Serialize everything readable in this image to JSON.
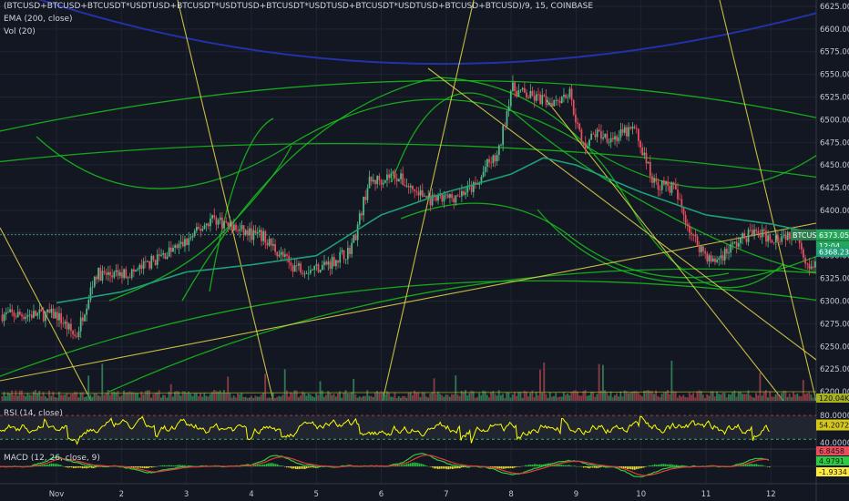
{
  "header": {
    "symbol_line": "(BTCUSD+BTCUSD+BTCUSDT*USDTUSD+BTCUSDT*USDTUSD+BTCUSDT*USDTUSD+BTCUSDT*USDTUSD+BTCUSD+BTCUSD)/9, 15, COINBASE",
    "ema_label": "EMA (200, close)",
    "vol_label": "Vol (20)"
  },
  "rsi": {
    "label": "RSI (14, close)",
    "value": "54.2072",
    "levels": [
      "80.0000",
      "40.0000"
    ],
    "upper": 70,
    "lower": 30
  },
  "macd": {
    "label": "MACD (12, 26, close, 9)",
    "values": [
      "6.8458",
      "4.9791",
      "-1.9334"
    ]
  },
  "price_badges": {
    "last": "6373.05",
    "last_label": "BTCUSD",
    "countdown": "12:04",
    "ema": "6368.23",
    "volume": "120.04K"
  },
  "colors": {
    "background": "#131722",
    "up_candle": "#53b987",
    "down_candle": "#eb4d5c",
    "ema": "#1e9e77",
    "trendline": "#e8d84a",
    "arc": "#18c11b",
    "blue_arc": "#2232a8",
    "rsi_line": "#ffff00",
    "macd_line": "#2ecc40",
    "signal_line": "#e33a3a"
  },
  "chart_data": {
    "type": "candlestick",
    "title": "(BTCUSD+BTCUSD+BTCUSDT*USDTUSD+BTCUSDT*USDTUSD+BTCUSDT*USDTUSD+BTCUSDT*USDTUSD+BTCUSD+BTCUSD)/9, 15, COINBASE",
    "interval": "15",
    "x_ticks": [
      "Nov",
      "2",
      "3",
      "4",
      "5",
      "6",
      "7",
      "8",
      "9",
      "10",
      "11",
      "12"
    ],
    "y_ticks": [
      6200,
      6225,
      6250,
      6275,
      6300,
      6325,
      6350,
      6375,
      6400,
      6425,
      6450,
      6475,
      6500,
      6525,
      6550,
      6575,
      6600,
      6625
    ],
    "ylim": [
      6190,
      6632
    ],
    "price_path": {
      "day": [
        0,
        0.3,
        0.6,
        0.9,
        1.2,
        1.5,
        2.0,
        2.4,
        2.8,
        3.2,
        3.6,
        3.9,
        4.2,
        4.5,
        4.6,
        4.8,
        5.2,
        5.5,
        5.8,
        6.1,
        6.5,
        6.6,
        6.8,
        7.0,
        7.3,
        7.6,
        7.9,
        8.1,
        8.3,
        8.6,
        8.9,
        9.2,
        9.5,
        9.8,
        10.1,
        10.4,
        10.7,
        11.0,
        11.4,
        11.6,
        11.9,
        12.15
      ],
      "price": [
        6285,
        6260,
        6330,
        6328,
        6332,
        6345,
        6365,
        6392,
        6378,
        6370,
        6340,
        6335,
        6342,
        6355,
        6372,
        6430,
        6440,
        6422,
        6410,
        6415,
        6428,
        6448,
        6460,
        6535,
        6525,
        6520,
        6530,
        6470,
        6485,
        6480,
        6490,
        6430,
        6425,
        6370,
        6342,
        6360,
        6376,
        6370,
        6376,
        6333,
        6350,
        6373
      ]
    },
    "ema200": {
      "day": [
        0,
        1,
        2,
        3,
        4,
        5,
        6,
        7,
        7.5,
        8,
        9,
        10,
        11,
        12.15
      ],
      "price": [
        6298,
        6310,
        6332,
        6340,
        6350,
        6395,
        6420,
        6440,
        6458,
        6450,
        6420,
        6395,
        6385,
        6368
      ]
    },
    "vol_last": "120.04K"
  }
}
